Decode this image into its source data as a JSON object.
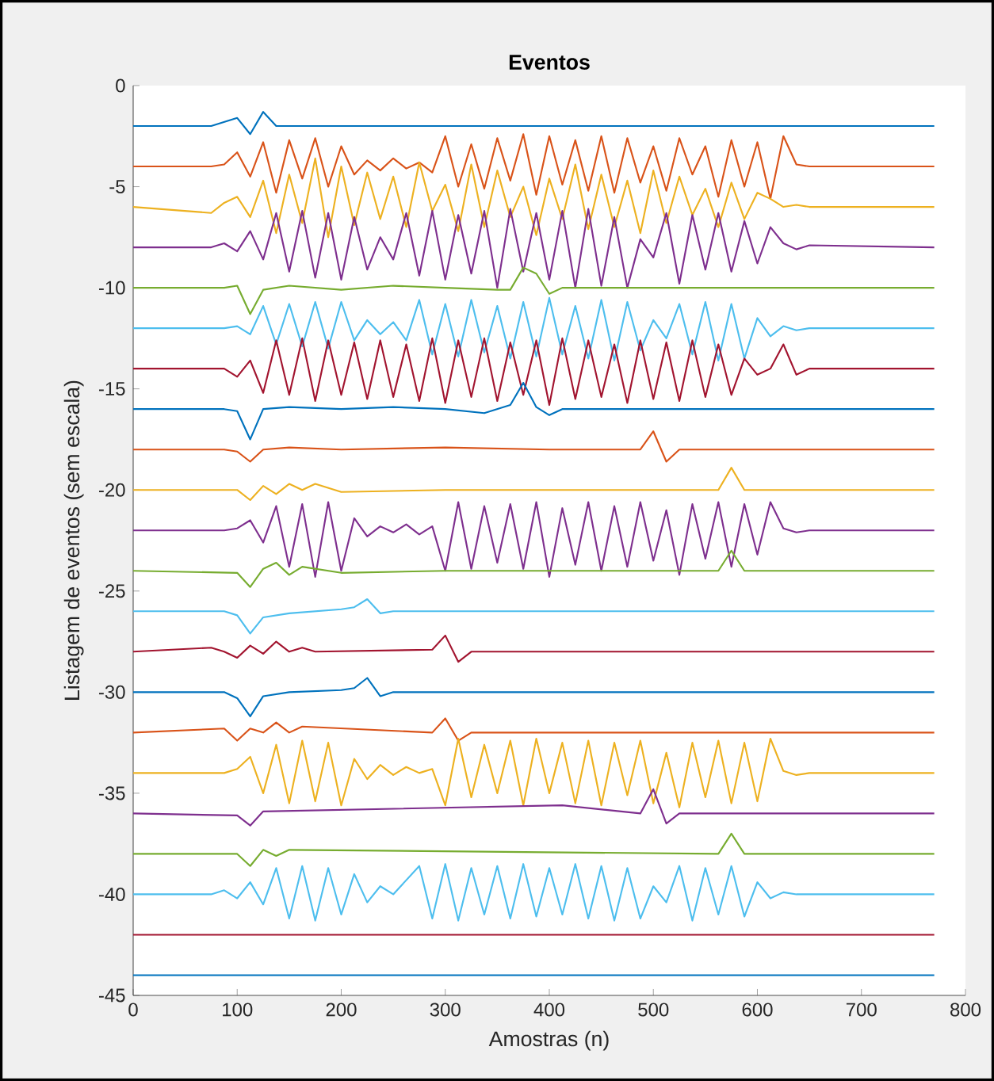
{
  "chart_data": {
    "type": "line",
    "title": "Eventos",
    "xlabel": "Amostras (n)",
    "ylabel": "Listagem de eventos (sem escala)",
    "xlim": [
      0,
      800
    ],
    "ylim": [
      -45,
      0
    ],
    "xticks": [
      0,
      100,
      200,
      300,
      400,
      500,
      600,
      700,
      800
    ],
    "yticks": [
      -45,
      -40,
      -35,
      -30,
      -25,
      -20,
      -15,
      -10,
      -5,
      0
    ],
    "line_style": "solid",
    "x": [
      0,
      75,
      87.5,
      100,
      112.5,
      125,
      137.5,
      150,
      162.5,
      175,
      187.5,
      200,
      212.5,
      225,
      237.5,
      250,
      262.5,
      275,
      287.5,
      300,
      312.5,
      325,
      337.5,
      350,
      362.5,
      375,
      387.5,
      400,
      412.5,
      425,
      437.5,
      450,
      462.5,
      475,
      487.5,
      500,
      512.5,
      525,
      537.5,
      550,
      562.5,
      575,
      587.5,
      600,
      612.5,
      625,
      637.5,
      650,
      770
    ],
    "series": [
      {
        "color": "#0072bd",
        "x": [
          0,
          75,
          87.5,
          100,
          112.5,
          125,
          137.5,
          770
        ],
        "values": [
          -2,
          -2,
          -1.8,
          -1.6,
          -2.4,
          -1.3,
          -2,
          -2
        ]
      },
      {
        "color": "#d95319",
        "values": [
          -4,
          -4,
          -3.9,
          -3.3,
          -4.5,
          -2.8,
          -5.3,
          -2.7,
          -4.6,
          -2.6,
          -5.0,
          -3.0,
          -4.4,
          -3.7,
          -4.2,
          -3.6,
          -4.1,
          -3.8,
          -4.3,
          -2.5,
          -5.0,
          -2.9,
          -5.1,
          -2.6,
          -4.7,
          -2.4,
          -5.4,
          -2.5,
          -4.9,
          -2.7,
          -5.2,
          -2.5,
          -5.3,
          -2.6,
          -4.8,
          -3.0,
          -5.2,
          -2.6,
          -4.4,
          -3.0,
          -5.5,
          -2.7,
          -5.0,
          -2.8,
          -5.6,
          -2.5,
          -3.9,
          -4,
          -4
        ]
      },
      {
        "color": "#edb120",
        "values": [
          -6,
          -6.3,
          -5.8,
          -5.5,
          -6.5,
          -4.7,
          -7.3,
          -4.4,
          -6.8,
          -3.6,
          -7.5,
          -4.0,
          -6.9,
          -4.3,
          -6.6,
          -4.5,
          -7.0,
          -3.8,
          -6.2,
          -4.9,
          -7.2,
          -3.9,
          -7.0,
          -4.2,
          -6.5,
          -5.0,
          -7.4,
          -4.6,
          -6.6,
          -3.9,
          -7.1,
          -4.4,
          -7.0,
          -4.7,
          -7.3,
          -4.2,
          -6.8,
          -4.5,
          -6.4,
          -5.1,
          -7.0,
          -4.8,
          -6.6,
          -5.3,
          -5.6,
          -6.0,
          -5.9,
          -6,
          -6
        ]
      },
      {
        "color": "#7e2f8e",
        "values": [
          -8,
          -8,
          -7.8,
          -8.2,
          -7.2,
          -8.6,
          -6.3,
          -9.2,
          -6.2,
          -9.5,
          -6.3,
          -9.6,
          -6.5,
          -9.1,
          -7.5,
          -8.6,
          -6.3,
          -9.4,
          -6.2,
          -9.6,
          -6.4,
          -9.3,
          -6.2,
          -10.0,
          -6.1,
          -9.2,
          -6.3,
          -9.6,
          -6.2,
          -10.0,
          -6.1,
          -9.9,
          -6.5,
          -10.0,
          -7.6,
          -8.5,
          -6.3,
          -9.8,
          -6.4,
          -9.1,
          -6.3,
          -9.2,
          -6.7,
          -8.8,
          -7.0,
          -7.8,
          -8.1,
          -7.9,
          -8
        ]
      },
      {
        "color": "#77ac30",
        "x": [
          0,
          87.5,
          100,
          112.5,
          125,
          150,
          200,
          250,
          300,
          350,
          362.5,
          375,
          387.5,
          400,
          412.5,
          770
        ],
        "values": [
          -10,
          -10,
          -9.9,
          -11.3,
          -10.1,
          -9.9,
          -10.1,
          -9.9,
          -10.0,
          -10.1,
          -10.1,
          -9.0,
          -9.3,
          -10.3,
          -10.0,
          -10
        ]
      },
      {
        "color": "#4dbeee",
        "values": [
          -12,
          -12,
          -12,
          -11.9,
          -12.3,
          -10.9,
          -12.8,
          -10.8,
          -12.9,
          -10.7,
          -13.0,
          -10.7,
          -12.6,
          -11.6,
          -12.3,
          -11.7,
          -12.6,
          -10.6,
          -13.3,
          -10.8,
          -13.4,
          -10.6,
          -13.2,
          -10.9,
          -13.5,
          -10.7,
          -13.4,
          -10.5,
          -13.3,
          -10.9,
          -13.5,
          -10.6,
          -13.6,
          -10.7,
          -13.1,
          -11.6,
          -12.5,
          -10.8,
          -13.3,
          -10.7,
          -13.6,
          -10.8,
          -13.5,
          -11.5,
          -12.4,
          -11.9,
          -12.1,
          -12,
          -12
        ]
      },
      {
        "color": "#a2142f",
        "values": [
          -14,
          -14,
          -14,
          -14.4,
          -13.6,
          -15.2,
          -12.6,
          -15.3,
          -12.5,
          -15.6,
          -12.6,
          -15.3,
          -12.7,
          -15.5,
          -12.6,
          -15.4,
          -12.8,
          -15.6,
          -12.5,
          -15.7,
          -12.6,
          -15.4,
          -12.5,
          -15.6,
          -12.7,
          -15.3,
          -12.6,
          -15.8,
          -12.5,
          -15.5,
          -12.6,
          -15.4,
          -12.8,
          -15.7,
          -12.6,
          -15.5,
          -12.7,
          -15.6,
          -12.6,
          -15.4,
          -12.8,
          -15.3,
          -13.5,
          -14.3,
          -14.0,
          -12.8,
          -14.3,
          -14,
          -14
        ]
      },
      {
        "color": "#0072bd",
        "x": [
          0,
          87.5,
          100,
          112.5,
          125,
          150,
          200,
          250,
          300,
          337.5,
          350,
          362.5,
          375,
          387.5,
          400,
          412.5,
          770
        ],
        "values": [
          -16,
          -16,
          -16.1,
          -17.5,
          -16.0,
          -15.9,
          -16.0,
          -15.9,
          -16.0,
          -16.2,
          -16.0,
          -15.8,
          -14.7,
          -15.9,
          -16.3,
          -16.0,
          -16
        ]
      },
      {
        "color": "#d95319",
        "x": [
          0,
          87.5,
          100,
          112.5,
          125,
          150,
          200,
          300,
          400,
          487.5,
          500,
          512.5,
          525,
          770
        ],
        "values": [
          -18,
          -18,
          -18.1,
          -18.6,
          -18.0,
          -17.9,
          -18.0,
          -17.9,
          -18.0,
          -18.0,
          -17.1,
          -18.6,
          -18.0,
          -18
        ]
      },
      {
        "color": "#edb120",
        "x": [
          0,
          100,
          112.5,
          125,
          137.5,
          150,
          162.5,
          175,
          200,
          300,
          562.5,
          575,
          587.5,
          770
        ],
        "values": [
          -20,
          -20,
          -20.5,
          -19.8,
          -20.2,
          -19.7,
          -20.0,
          -19.7,
          -20.1,
          -20.0,
          -20.0,
          -18.9,
          -20.0,
          -20
        ]
      },
      {
        "color": "#7e2f8e",
        "values": [
          -22,
          -22,
          -22,
          -21.9,
          -21.5,
          -22.6,
          -20.8,
          -23.8,
          -20.7,
          -24.3,
          -20.6,
          -24.0,
          -21.4,
          -22.3,
          -21.8,
          -22.1,
          -21.7,
          -22.2,
          -21.8,
          -24.0,
          -20.6,
          -23.9,
          -20.8,
          -23.6,
          -20.7,
          -23.9,
          -20.6,
          -24.3,
          -20.9,
          -23.7,
          -20.6,
          -24.0,
          -20.8,
          -23.8,
          -20.6,
          -23.5,
          -21.0,
          -24.2,
          -20.7,
          -23.4,
          -20.6,
          -23.8,
          -20.7,
          -23.2,
          -20.6,
          -21.9,
          -22.1,
          -22,
          -22
        ]
      },
      {
        "color": "#77ac30",
        "x": [
          0,
          100,
          112.5,
          125,
          137.5,
          150,
          162.5,
          175,
          200,
          300,
          562.5,
          575,
          587.5,
          770
        ],
        "values": [
          -24,
          -24.1,
          -24.8,
          -23.9,
          -23.6,
          -24.2,
          -23.8,
          -23.9,
          -24.1,
          -24.0,
          -24.0,
          -23.0,
          -24.0,
          -24
        ]
      },
      {
        "color": "#4dbeee",
        "x": [
          0,
          87.5,
          100,
          112.5,
          125,
          150,
          200,
          212.5,
          225,
          237.5,
          250,
          770
        ],
        "values": [
          -26,
          -26,
          -26.2,
          -27.1,
          -26.3,
          -26.1,
          -25.9,
          -25.8,
          -25.4,
          -26.1,
          -26.0,
          -26
        ]
      },
      {
        "color": "#a2142f",
        "x": [
          0,
          75,
          87.5,
          100,
          112.5,
          125,
          137.5,
          150,
          162.5,
          175,
          287.5,
          300,
          312.5,
          325,
          770
        ],
        "values": [
          -28,
          -27.8,
          -28.0,
          -28.3,
          -27.7,
          -28.1,
          -27.5,
          -28.0,
          -27.8,
          -28.0,
          -27.9,
          -27.2,
          -28.5,
          -28.0,
          -28
        ]
      },
      {
        "color": "#0072bd",
        "x": [
          0,
          87.5,
          100,
          112.5,
          125,
          150,
          200,
          212.5,
          225,
          237.5,
          250,
          770
        ],
        "values": [
          -30,
          -30,
          -30.3,
          -31.2,
          -30.2,
          -30.0,
          -29.9,
          -29.8,
          -29.3,
          -30.2,
          -30.0,
          -30
        ]
      },
      {
        "color": "#d95319",
        "x": [
          0,
          87.5,
          100,
          112.5,
          125,
          137.5,
          150,
          162.5,
          287.5,
          300,
          312.5,
          325,
          770
        ],
        "values": [
          -32,
          -31.8,
          -32.4,
          -31.8,
          -32.0,
          -31.5,
          -32.0,
          -31.7,
          -32.0,
          -31.3,
          -32.4,
          -32.0,
          -32
        ]
      },
      {
        "color": "#edb120",
        "values": [
          -34,
          -34,
          -34,
          -33.8,
          -33.2,
          -35.0,
          -32.6,
          -35.5,
          -32.4,
          -35.4,
          -32.5,
          -35.6,
          -33.3,
          -34.3,
          -33.6,
          -34.1,
          -33.7,
          -34.0,
          -33.8,
          -35.6,
          -32.3,
          -35.2,
          -32.6,
          -35.0,
          -32.4,
          -35.6,
          -32.3,
          -35.0,
          -32.5,
          -35.5,
          -32.4,
          -35.6,
          -32.5,
          -35.1,
          -32.4,
          -35.5,
          -33.0,
          -35.7,
          -32.5,
          -35.2,
          -32.4,
          -35.5,
          -32.5,
          -35.4,
          -32.3,
          -33.9,
          -34.1,
          -34,
          -34
        ]
      },
      {
        "color": "#7e2f8e",
        "x": [
          0,
          100,
          112.5,
          125,
          412.5,
          487.5,
          500,
          512.5,
          525,
          770
        ],
        "values": [
          -36,
          -36.1,
          -36.6,
          -35.9,
          -35.6,
          -36.0,
          -34.8,
          -36.5,
          -36.0,
          -36
        ]
      },
      {
        "color": "#77ac30",
        "x": [
          0,
          100,
          112.5,
          125,
          137.5,
          150,
          562.5,
          575,
          587.5,
          770
        ],
        "values": [
          -38,
          -38,
          -38.6,
          -37.8,
          -38.1,
          -37.8,
          -38.0,
          -37.0,
          -38.0,
          -38
        ]
      },
      {
        "color": "#4dbeee",
        "values": [
          -40,
          -40,
          -39.8,
          -40.2,
          -39.4,
          -40.5,
          -38.7,
          -41.2,
          -38.6,
          -41.3,
          -38.7,
          -41.0,
          -39.0,
          -40.4,
          -39.6,
          -40.0,
          -39.3,
          -38.6,
          -41.2,
          -38.5,
          -41.3,
          -38.7,
          -41.0,
          -38.6,
          -41.2,
          -38.5,
          -41.1,
          -38.7,
          -41.0,
          -38.5,
          -41.2,
          -38.6,
          -41.3,
          -38.7,
          -41.2,
          -39.6,
          -40.4,
          -38.6,
          -41.3,
          -38.7,
          -41.0,
          -38.6,
          -41.1,
          -39.4,
          -40.2,
          -39.9,
          -40.0,
          -40,
          -40
        ]
      },
      {
        "color": "#a2142f",
        "x": [
          0,
          770
        ],
        "values": [
          -42,
          -42
        ]
      },
      {
        "color": "#0072bd",
        "x": [
          0,
          770
        ],
        "values": [
          -44,
          -44
        ]
      }
    ]
  }
}
